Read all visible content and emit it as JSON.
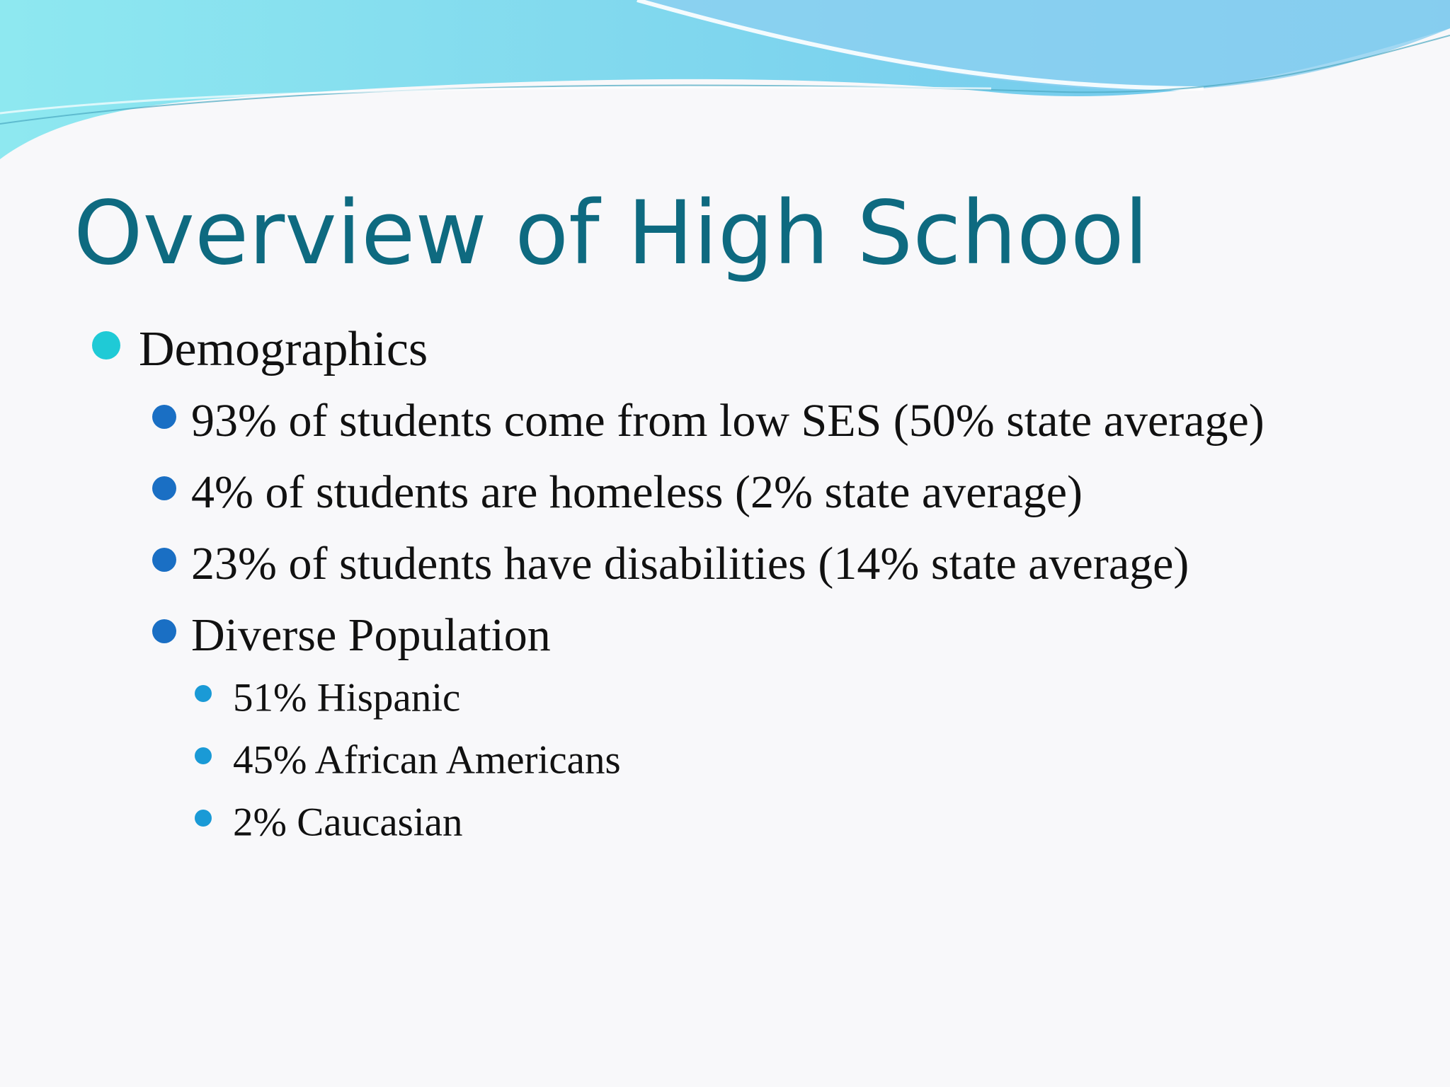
{
  "title": "Overview of High School",
  "bullets": [
    {
      "text": "Demographics",
      "items": [
        {
          "text": "93% of students come from low SES (50% state average)"
        },
        {
          "text": "4% of students are homeless (2% state average)"
        },
        {
          "text": "23% of students have disabilities (14% state average)"
        },
        {
          "text": "Diverse Population",
          "items": [
            {
              "text": "51% Hispanic"
            },
            {
              "text": "45% African Americans"
            },
            {
              "text": "2% Caucasian"
            }
          ]
        }
      ]
    }
  ]
}
